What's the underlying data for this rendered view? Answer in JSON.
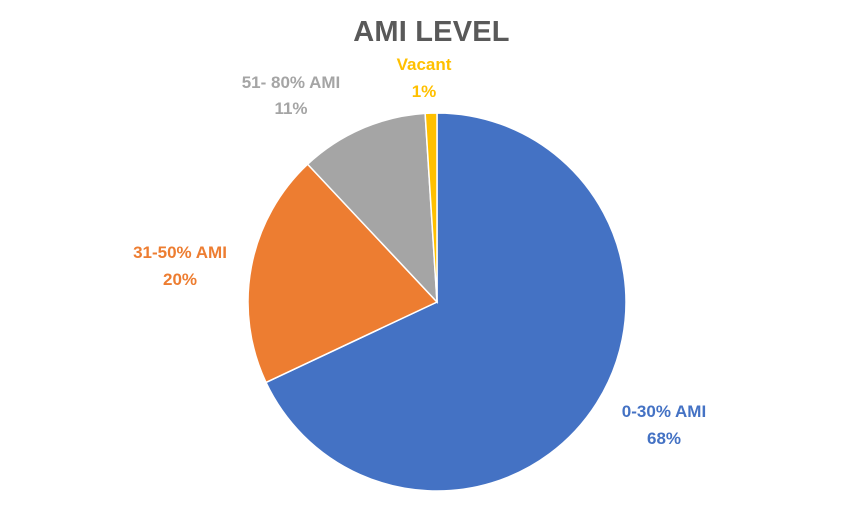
{
  "chart_data": {
    "type": "pie",
    "title": "AMI LEVEL",
    "categories": [
      "0-30% AMI",
      "31-50% AMI",
      "51- 80% AMI",
      "Vacant"
    ],
    "values": [
      68,
      20,
      11,
      1
    ],
    "value_labels": [
      "68%",
      "20%",
      "11%",
      "1%"
    ],
    "colors": [
      "#4472C4",
      "#ED7D31",
      "#A5A5A5",
      "#FFC000"
    ],
    "legend": "none",
    "data_labels": "outside, category name and percentage"
  }
}
